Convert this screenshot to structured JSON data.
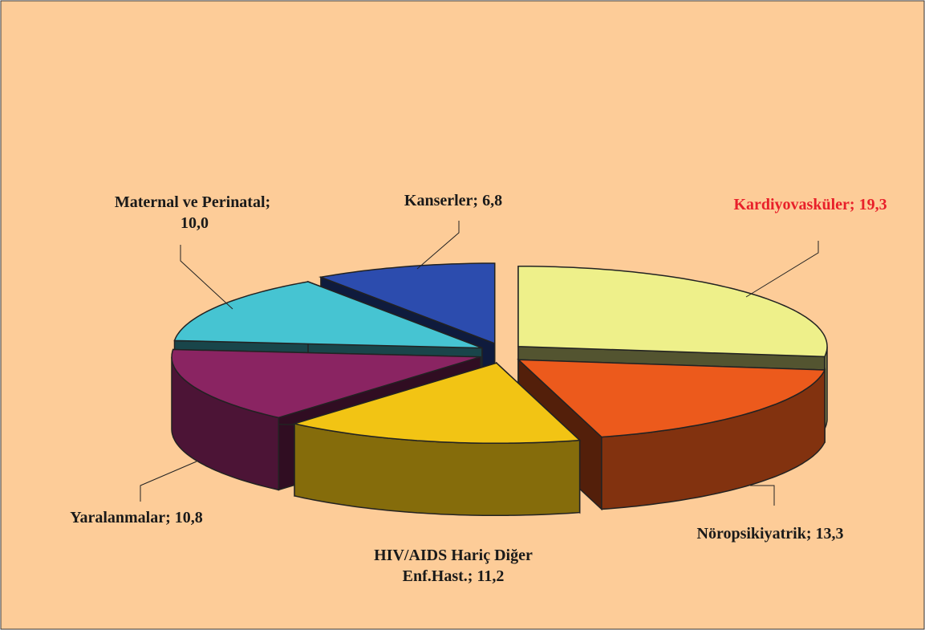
{
  "chart_data": {
    "type": "pie3d",
    "categories": [
      "Kardiyovasküler;",
      "Nöropsikiyatrik;",
      "HIV/AIDS Hariç Diğer Enf.Hast.;",
      "Yaralanmalar;",
      "Maternal ve Perinatal;",
      "Kanserler;"
    ],
    "values": [
      19.3,
      13.3,
      11.2,
      10.8,
      10.0,
      6.8
    ],
    "value_labels": [
      "19,3",
      "13,3",
      "11,2",
      "10,8",
      "10,0",
      "6,8"
    ],
    "colors": [
      "#eef08a",
      "#ec5a1c",
      "#f2c414",
      "#8a2462",
      "#46c4d2",
      "#2c4cae"
    ],
    "label_colors": [
      "#e8202a",
      "#1a1a1a",
      "#1a1a1a",
      "#1a1a1a",
      "#1a1a1a",
      "#1a1a1a"
    ],
    "background": "#fdcc98"
  }
}
